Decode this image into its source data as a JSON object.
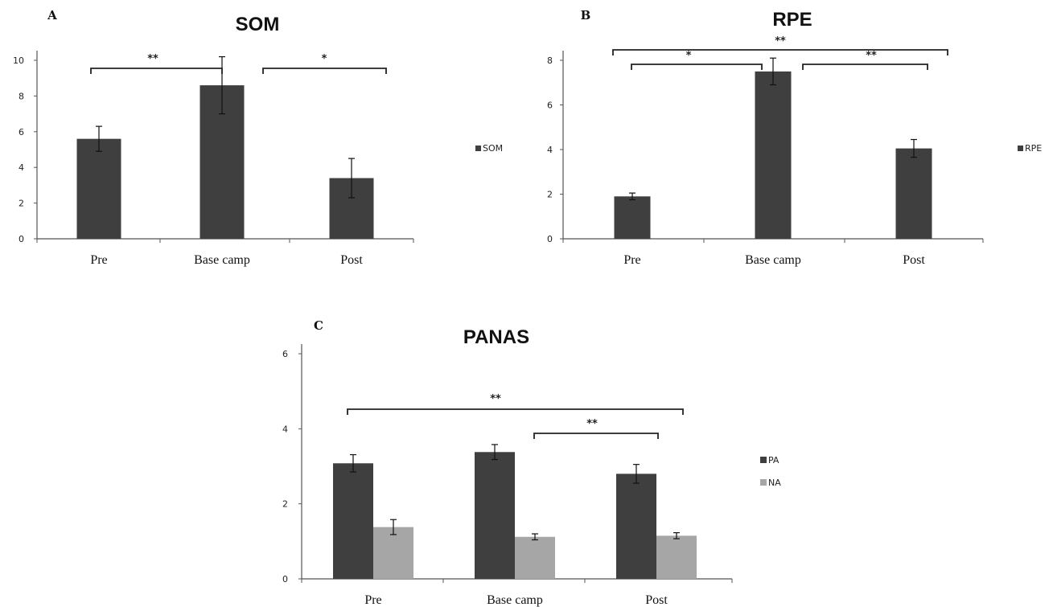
{
  "chart_data": [
    {
      "id": "A",
      "panel_label": "A",
      "type": "bar",
      "title": "SOM",
      "categories": [
        "Pre",
        "Base camp",
        "Post"
      ],
      "series": [
        {
          "name": "SOM",
          "values": [
            5.6,
            8.6,
            3.4
          ],
          "errors": [
            0.7,
            1.6,
            1.1
          ],
          "color": "#3f3f3f"
        }
      ],
      "ylim": [
        0,
        10
      ],
      "yticks": [
        "0",
        "2",
        "4",
        "6",
        "8",
        "10"
      ],
      "legend": "right",
      "grid": false,
      "significance": [
        {
          "from": 0,
          "to": 1,
          "label": "**"
        },
        {
          "from": 1,
          "to": 2,
          "label": "*"
        }
      ]
    },
    {
      "id": "B",
      "panel_label": "B",
      "type": "bar",
      "title": "RPE",
      "categories": [
        "Pre",
        "Base camp",
        "Post"
      ],
      "series": [
        {
          "name": "RPE",
          "values": [
            1.9,
            7.5,
            4.05
          ],
          "errors": [
            0.15,
            0.6,
            0.4
          ],
          "color": "#3f3f3f"
        }
      ],
      "ylim": [
        0,
        8
      ],
      "yticks": [
        "0",
        "2",
        "4",
        "6",
        "8"
      ],
      "legend": "right",
      "grid": false,
      "significance": [
        {
          "from": 0,
          "to": 1,
          "label": "*"
        },
        {
          "from": 1,
          "to": 2,
          "label": "**"
        },
        {
          "from": 0,
          "to": 2,
          "label": "**"
        }
      ]
    },
    {
      "id": "C",
      "panel_label": "C",
      "type": "bar",
      "title": "PANAS",
      "categories": [
        "Pre",
        "Base camp",
        "Post"
      ],
      "series": [
        {
          "name": "PA",
          "values": [
            3.08,
            3.38,
            2.8
          ],
          "errors": [
            0.23,
            0.2,
            0.25
          ],
          "color": "#3f3f3f"
        },
        {
          "name": "NA",
          "values": [
            1.38,
            1.12,
            1.15
          ],
          "errors": [
            0.2,
            0.08,
            0.08
          ],
          "color": "#a6a6a6"
        }
      ],
      "ylim": [
        0,
        6
      ],
      "yticks": [
        "0",
        "2",
        "4",
        "6"
      ],
      "legend": "right",
      "grid": false,
      "significance": [
        {
          "from": 0,
          "to": 2,
          "label": "**"
        },
        {
          "from": 1,
          "to": 2,
          "label": "**"
        }
      ]
    }
  ]
}
